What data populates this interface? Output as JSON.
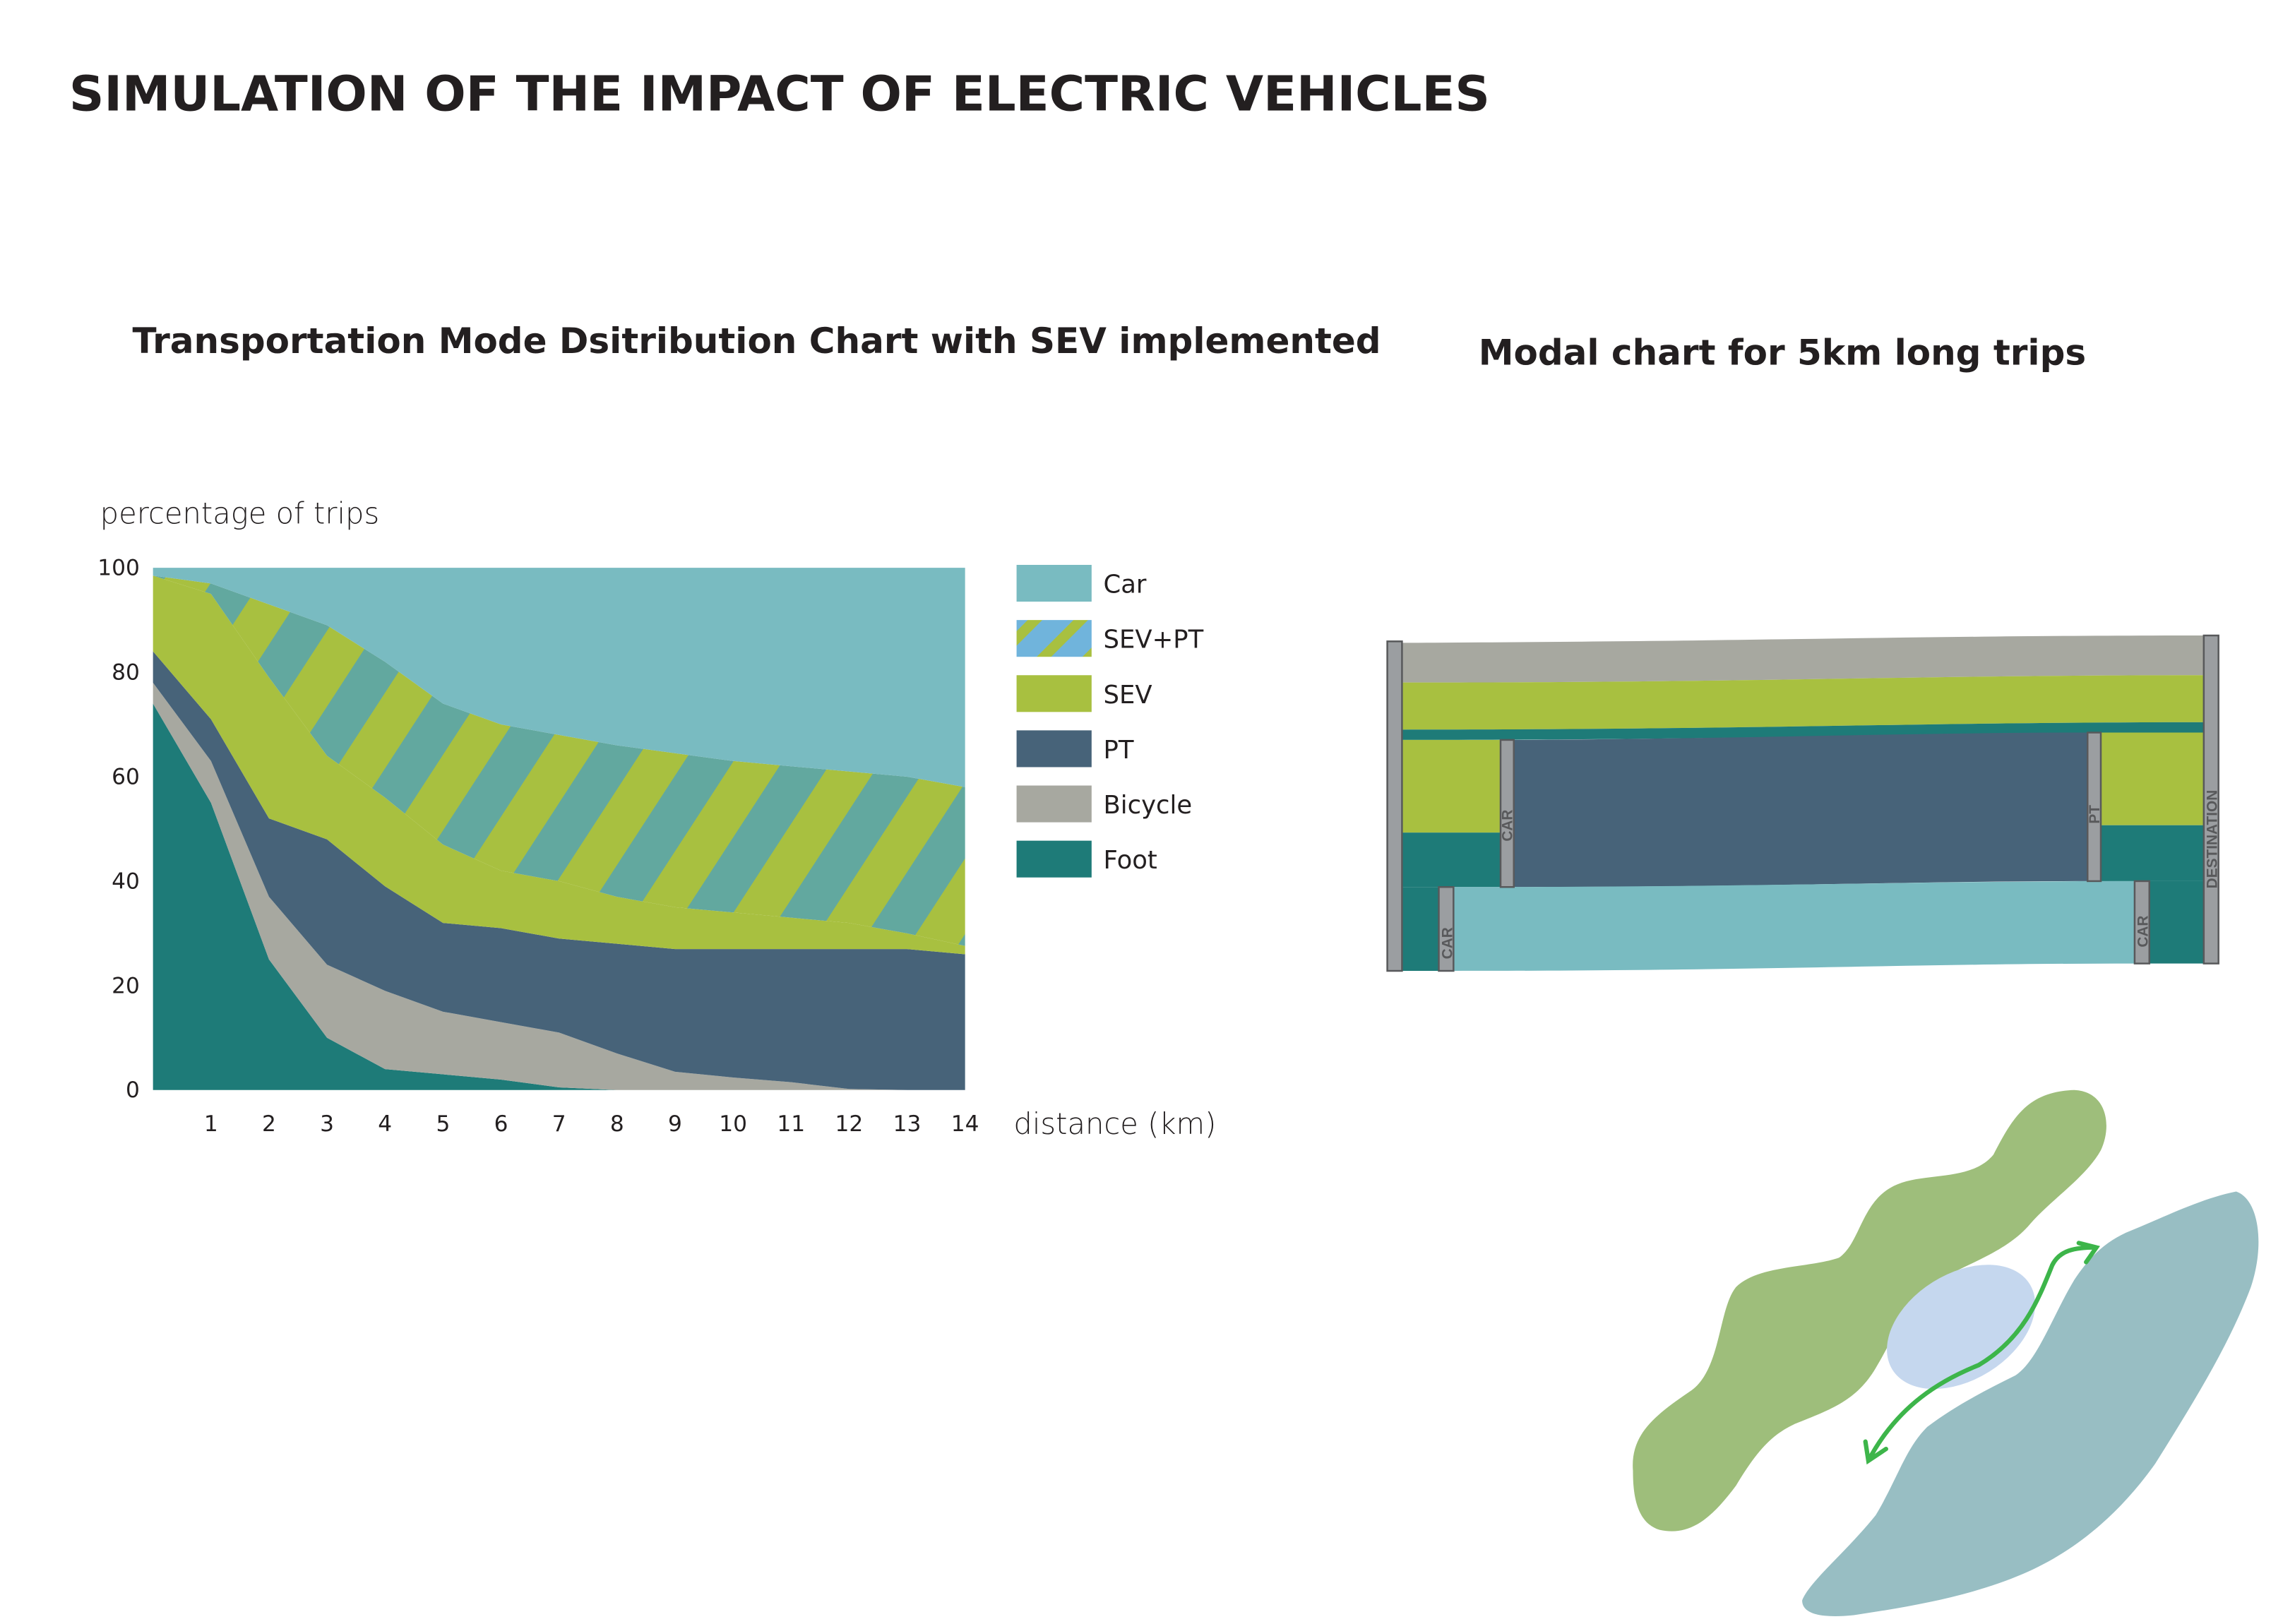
{
  "title": "SIMULATION OF THE IMPACT OF ELECTRIC VEHICLES",
  "colors": {
    "car": "#79bbc1",
    "sev_pt_stripe_a": "#62a89f",
    "sev_pt_legend_blue": "#70b4dc",
    "sev": "#a8c040",
    "pt": "#476379",
    "bicycle": "#a7a8a0",
    "foot": "#1e7b78",
    "map_green": "#9ebe7b",
    "map_blue": "#98bec3",
    "map_light": "#c5d7ee",
    "arrow": "#3db54a",
    "node": "#9b9ea1"
  },
  "chart_data": {
    "type": "area",
    "title": "Transportation Mode Dsitribution Chart with SEV implemented",
    "ylabel": "percentage of trips",
    "xlabel": "distance (km)",
    "ylim": [
      0,
      100
    ],
    "xlim": [
      0,
      14
    ],
    "yticks": [
      "0",
      "20",
      "40",
      "60",
      "80",
      "100"
    ],
    "xticks": [
      "1",
      "2",
      "3",
      "4",
      "5",
      "6",
      "7",
      "8",
      "9",
      "10",
      "11",
      "12",
      "13",
      "14"
    ],
    "x": [
      0,
      1,
      2,
      3,
      4,
      5,
      6,
      7,
      8,
      9,
      10,
      11,
      12,
      13,
      14
    ],
    "stacked": true,
    "legend_position": "right",
    "series": [
      {
        "name": "Foot",
        "key": "foot",
        "values": [
          74,
          55,
          25,
          10,
          4,
          3,
          2,
          0.5,
          0,
          0,
          0,
          0,
          0,
          0,
          0
        ]
      },
      {
        "name": "Bicycle",
        "key": "bicycle",
        "values": [
          4,
          8,
          12,
          14,
          15,
          12,
          11,
          10.5,
          7,
          3.5,
          2.4,
          1.5,
          0.2,
          0,
          0
        ]
      },
      {
        "name": "PT",
        "key": "pt",
        "values": [
          6,
          8,
          15,
          24,
          20,
          17,
          18,
          18,
          21,
          23.5,
          24.6,
          25.5,
          26.8,
          27,
          26
        ]
      },
      {
        "name": "SEV",
        "key": "sev",
        "values": [
          14.5,
          24,
          27,
          16,
          17,
          15,
          11,
          11,
          9,
          8,
          7,
          6,
          5,
          3,
          1.6
        ]
      },
      {
        "name": "SEV+PT",
        "key": "sevpt",
        "values": [
          0,
          2,
          14,
          25,
          26,
          27,
          28,
          28,
          29,
          29.5,
          29,
          29,
          29,
          30,
          30.4
        ]
      },
      {
        "name": "Car",
        "key": "car",
        "values": [
          1.5,
          3,
          7,
          11,
          18,
          26,
          30,
          32,
          34,
          35.5,
          37,
          38,
          39,
          40,
          42
        ]
      }
    ],
    "legend": [
      "Car",
      "SEV+PT",
      "SEV",
      "PT",
      "Bicycle",
      "Foot"
    ]
  },
  "modal": {
    "title": "Modal chart for 5km long trips",
    "node_labels": {
      "car_1": "CAR",
      "pt": "PT",
      "car_2": "CAR",
      "car_3": "CAR",
      "destination": "DESTINATION"
    }
  }
}
